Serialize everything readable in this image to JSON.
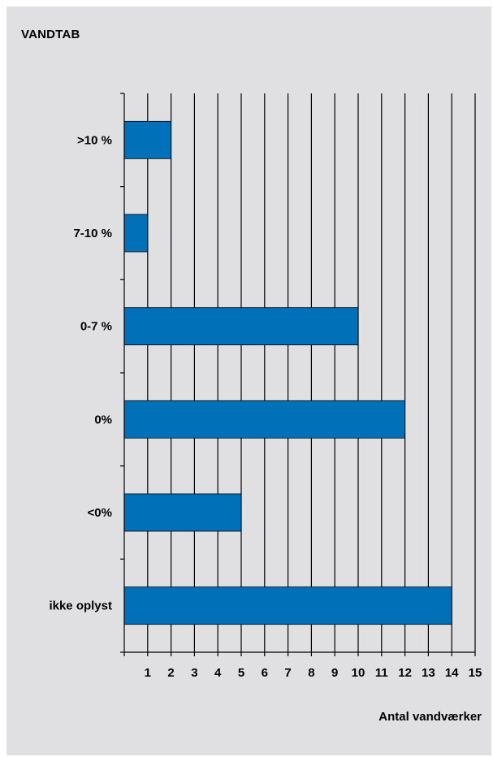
{
  "chart_data": {
    "type": "bar",
    "orientation": "horizontal",
    "title": "VANDTAB",
    "xlabel": "Antal vandværker",
    "ylabel": "",
    "categories": [
      ">10 %",
      "7-10 %",
      "0-7 %",
      "0%",
      "<0%",
      "ikke oplyst"
    ],
    "values": [
      2,
      1,
      10,
      12,
      5,
      14
    ],
    "xlim": [
      0,
      15
    ],
    "x_ticks": [
      "1",
      "2",
      "3",
      "4",
      "5",
      "6",
      "7",
      "8",
      "9",
      "10",
      "11",
      "12",
      "13",
      "14",
      "15"
    ],
    "grid": "vertical",
    "bar_color": "#0070b8",
    "background_color": "#e0e0e2"
  }
}
